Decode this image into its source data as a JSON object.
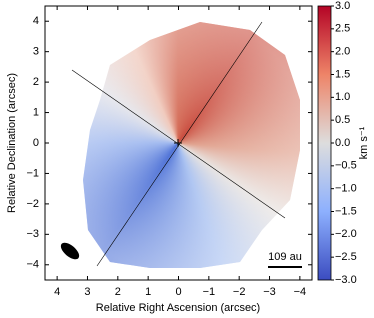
{
  "chart_data": {
    "type": "image",
    "x_label": "Relative Right Ascension (arcsec)",
    "y_label": "Relative Declination (arcsec)",
    "xlim": [
      4.4,
      -4.4
    ],
    "ylim": [
      -4.5,
      4.5
    ],
    "xticks": [
      4,
      3,
      2,
      1,
      0,
      {
        "value": -1,
        "label": "−1"
      },
      {
        "value": -2,
        "label": "−2"
      },
      {
        "value": -3,
        "label": "−3"
      },
      {
        "value": -4,
        "label": "−4"
      }
    ],
    "yticks": [
      {
        "value": -4,
        "label": "−4"
      },
      {
        "value": -3,
        "label": "−3"
      },
      {
        "value": -2,
        "label": "−2"
      },
      {
        "value": -1,
        "label": "−1"
      },
      0,
      1,
      2,
      3,
      4
    ],
    "colorbar": {
      "label": "km s⁻¹",
      "clim": [
        -3,
        3
      ],
      "ticks": [
        {
          "value": 3,
          "label": "3.0"
        },
        {
          "value": 2.5,
          "label": "2.5"
        },
        {
          "value": 2,
          "label": "2.0"
        },
        {
          "value": 1.5,
          "label": "1.5"
        },
        {
          "value": 1,
          "label": "1.0"
        },
        {
          "value": 0.5,
          "label": "0.5"
        },
        {
          "value": 0,
          "label": "0.0"
        },
        {
          "value": -0.5,
          "label": "−0.5"
        },
        {
          "value": -1,
          "label": "−1.0"
        },
        {
          "value": -1.5,
          "label": "−1.5"
        },
        {
          "value": -2,
          "label": "−2.0"
        },
        {
          "value": -2.5,
          "label": "−2.5"
        },
        {
          "value": -3,
          "label": "−3.0"
        }
      ]
    },
    "scale_bar": {
      "label": "109 au"
    }
  }
}
